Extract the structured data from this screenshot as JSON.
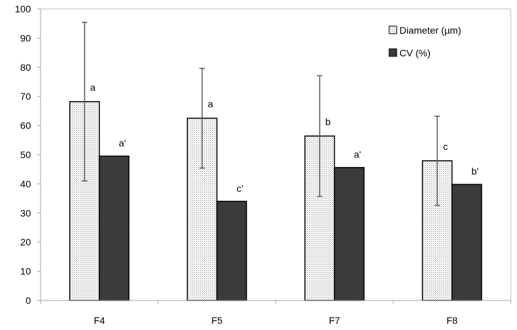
{
  "chart_data": {
    "type": "bar",
    "categories": [
      "F4",
      "F5",
      "F7",
      "F8"
    ],
    "series": [
      {
        "name": "Diameter (µm)",
        "values": [
          68.2,
          62.5,
          56.4,
          47.9
        ],
        "error": [
          27.2,
          17.1,
          20.7,
          15.3
        ],
        "labels": [
          "a",
          "a",
          "b",
          "c"
        ],
        "pattern": "light-dotted"
      },
      {
        "name": "CV (%)",
        "values": [
          49.5,
          34.0,
          45.6,
          39.8
        ],
        "labels": [
          "a'",
          "c'",
          "a'",
          "b'"
        ],
        "pattern": "dark-checkered"
      }
    ],
    "ylim": [
      0,
      100
    ],
    "yticks": [
      0,
      10,
      20,
      30,
      40,
      50,
      60,
      70,
      80,
      90,
      100
    ],
    "grid": false,
    "legend": "top-right",
    "title": "",
    "xlabel": "",
    "ylabel": ""
  }
}
